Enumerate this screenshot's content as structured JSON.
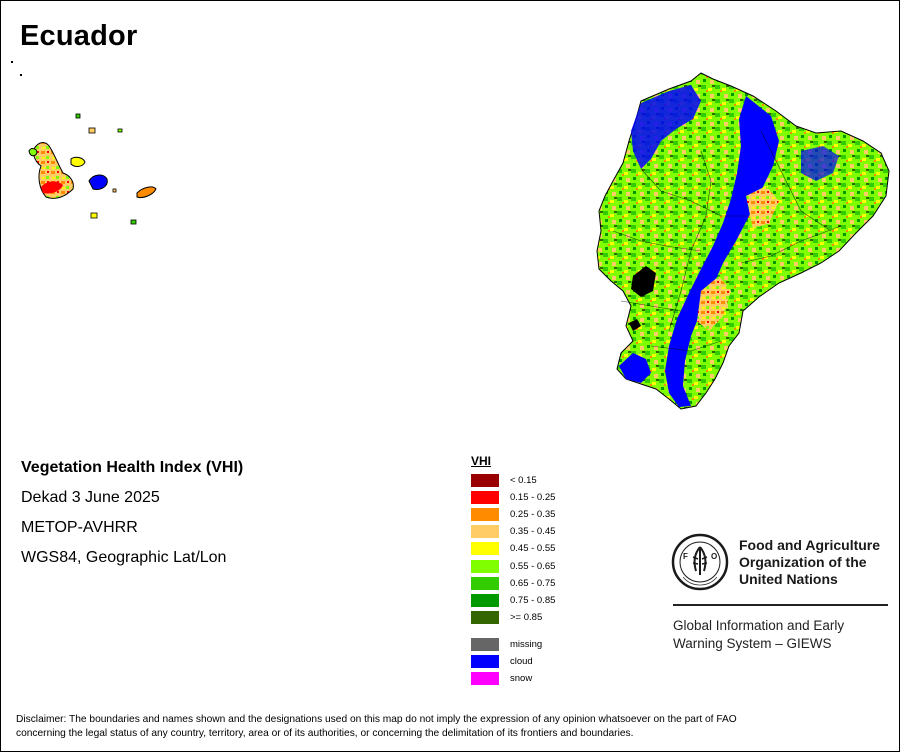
{
  "map": {
    "title": "Ecuador"
  },
  "info": {
    "product": "Vegetation Health Index (VHI)",
    "period": "Dekad 3 June 2025",
    "sensor": "METOP-AVHRR",
    "projection": "WGS84, Geographic Lat/Lon"
  },
  "legend": {
    "title": "VHI",
    "classes": [
      {
        "label": "< 0.15",
        "color": "#990000"
      },
      {
        "label": "0.15 - 0.25",
        "color": "#ff0000"
      },
      {
        "label": "0.25 - 0.35",
        "color": "#ff8c00"
      },
      {
        "label": "0.35 - 0.45",
        "color": "#ffcc66"
      },
      {
        "label": "0.45 - 0.55",
        "color": "#ffff00"
      },
      {
        "label": "0.55 - 0.65",
        "color": "#80ff00"
      },
      {
        "label": "0.65 - 0.75",
        "color": "#33cc00"
      },
      {
        "label": "0.75 - 0.85",
        "color": "#009900"
      },
      {
        "label": ">= 0.85",
        "color": "#336600"
      }
    ],
    "special": [
      {
        "label": "missing",
        "color": "#666666"
      },
      {
        "label": "cloud",
        "color": "#0000ff"
      },
      {
        "label": "snow",
        "color": "#ff00ff"
      }
    ]
  },
  "fao": {
    "name_line1": "Food and Agriculture",
    "name_line2": "Organization of the",
    "name_line3": "United Nations",
    "emblem_text": "FAO FIAT PANIS",
    "giews_line1": "Global Information and Early",
    "giews_line2": "Warning System – GIEWS"
  },
  "disclaimer": {
    "line1": "Disclaimer: The boundaries and names shown and the designations used on this map do not imply the expression of any opinion whatsoever on the part of FAO",
    "line2": "concerning the legal status of any country, territory, area or of its authorities, or concerning the delimitation of its frontiers and boundaries."
  }
}
